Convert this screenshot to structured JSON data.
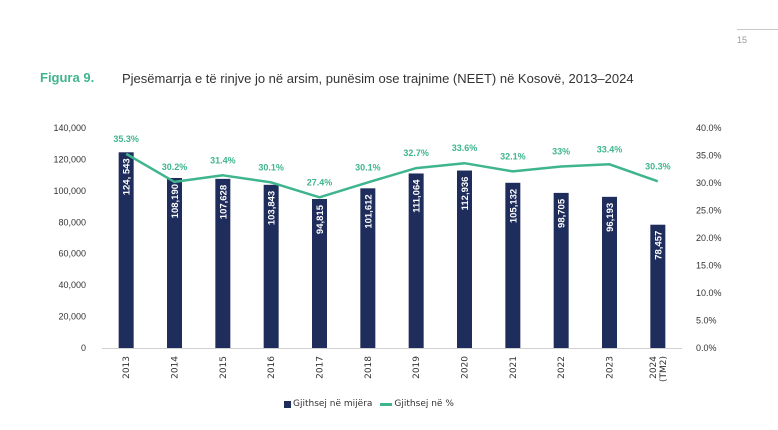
{
  "page": {
    "number": "15"
  },
  "figure": {
    "label": "Figura 9.",
    "title": "Pjesëmarrja e të rinjve jo në arsim, punësim ose trajnime (NEET) në Kosovë, 2013–2024"
  },
  "colors": {
    "bars": "#1f2d5c",
    "line": "#3fb58f",
    "axis": "#d0d0d0"
  },
  "chart_data": {
    "type": "bar",
    "title": "Pjesëmarrja e të rinjve jo në arsim, punësim ose trajnime (NEET) në Kosovë, 2013–2024",
    "categories": [
      "2013",
      "2014",
      "2015",
      "2016",
      "2017",
      "2018",
      "2019",
      "2020",
      "2021",
      "2022",
      "2023",
      "2024 (TM2)"
    ],
    "category_lines": [
      [
        "2013"
      ],
      [
        "2014"
      ],
      [
        "2015"
      ],
      [
        "2016"
      ],
      [
        "2017"
      ],
      [
        "2018"
      ],
      [
        "2019"
      ],
      [
        "2020"
      ],
      [
        "2021"
      ],
      [
        "2022"
      ],
      [
        "2023"
      ],
      [
        "2024",
        "(TM2)"
      ]
    ],
    "series": [
      {
        "name": "Gjithsej në mijëra",
        "type": "bar",
        "axis": "left",
        "values": [
          124543,
          108190,
          107628,
          103843,
          94815,
          101612,
          111064,
          112936,
          105132,
          98705,
          96193,
          78457
        ],
        "labels": [
          "124, 543",
          "108,190",
          "107,628",
          "103,843",
          "94,815",
          "101,612",
          "111,064",
          "112,936",
          "105,132",
          "98,705",
          "96,193",
          "78,457"
        ]
      },
      {
        "name": "Gjithsej në %",
        "type": "line",
        "axis": "right",
        "values": [
          35.3,
          30.2,
          31.4,
          30.1,
          27.4,
          30.1,
          32.7,
          33.6,
          32.1,
          33.0,
          33.4,
          30.3
        ],
        "labels": [
          "35.3%",
          "30.2%",
          "31.4%",
          "30.1%",
          "27.4%",
          "30.1%",
          "32.7%",
          "33.6%",
          "32.1%",
          "33%",
          "33.4%",
          "30.3%"
        ]
      }
    ],
    "y_left": {
      "min": 0,
      "max": 140000,
      "ticks": [
        "0",
        "20,000",
        "40,000",
        "60,000",
        "80,000",
        "100,000",
        "120,000",
        "140,000"
      ]
    },
    "y_right": {
      "min": 0,
      "max": 40,
      "ticks": [
        "0.0%",
        "5.0%",
        "10.0%",
        "15.0%",
        "20.0%",
        "25.0%",
        "30.0%",
        "35.0%",
        "40.0%"
      ]
    },
    "xlabel": "",
    "ylabel": "",
    "grid": false,
    "legend_position": "bottom"
  },
  "legend": {
    "bars_label": "Gjithsej në mijëra",
    "line_label": "Gjithsej në %"
  }
}
